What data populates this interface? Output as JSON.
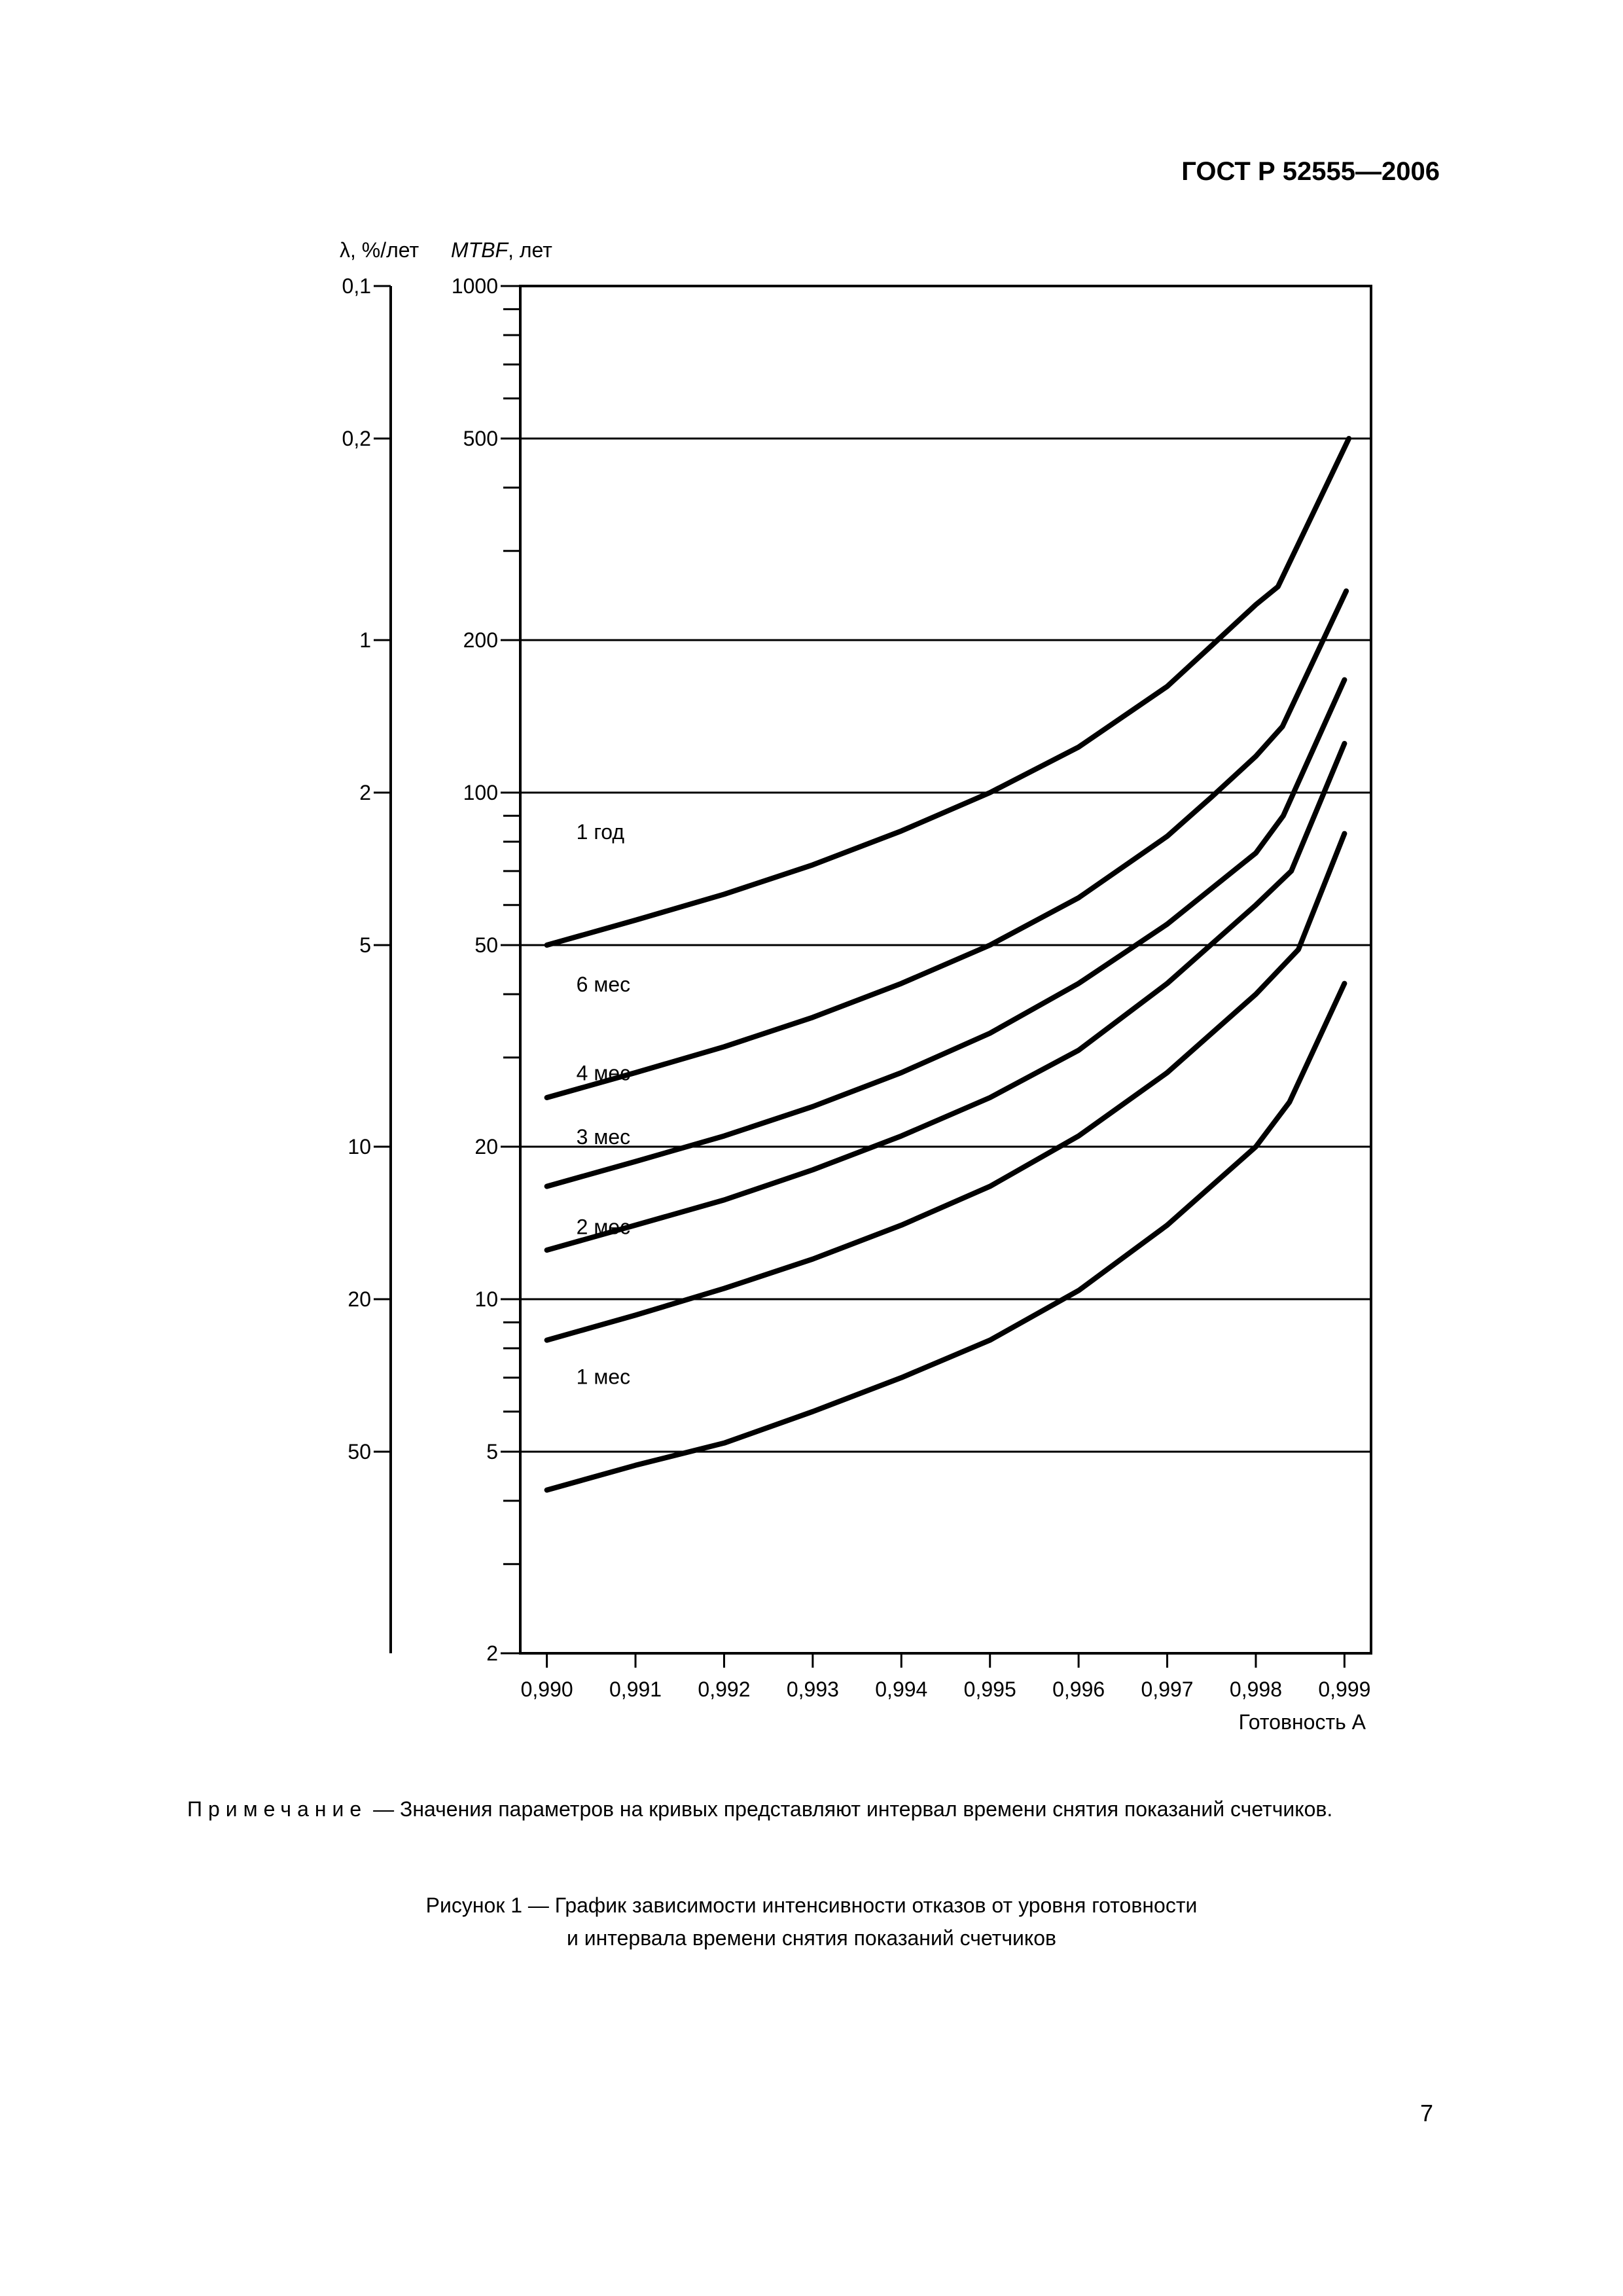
{
  "header": {
    "doc_code": "ГОСТ Р 52555—2006"
  },
  "chart_data": {
    "type": "line",
    "x_axis": {
      "label": "Готовность А",
      "ticks": [
        "0,990",
        "0,991",
        "0,992",
        "0,993",
        "0,994",
        "0,995",
        "0,996",
        "0,997",
        "0,998",
        "0,999"
      ],
      "range": [
        0.9897,
        0.9993
      ]
    },
    "y_axis": {
      "label_italic": "MTBF",
      "label_rest": ", лет",
      "scale": "log",
      "range": [
        2,
        1000
      ],
      "ticks": [
        "1000",
        "500",
        "200",
        "100",
        "50",
        "20",
        "10",
        "5",
        "2"
      ],
      "grid": true
    },
    "y_axis_secondary": {
      "label": "λ, %/лет",
      "scale": "log",
      "ticks": [
        "0,1",
        "0,2",
        "1",
        "2",
        "5",
        "10",
        "20",
        "50"
      ]
    },
    "series": [
      {
        "name": "1 год",
        "x": [
          0.99,
          0.991,
          0.992,
          0.993,
          0.994,
          0.995,
          0.996,
          0.997,
          0.9975,
          0.998,
          0.99825,
          0.99905
        ],
        "y": [
          50,
          56,
          63,
          72,
          84,
          100,
          123,
          162,
          195,
          235,
          255,
          500
        ]
      },
      {
        "name": "6 мес",
        "x": [
          0.99,
          0.991,
          0.992,
          0.993,
          0.994,
          0.995,
          0.996,
          0.997,
          0.9975,
          0.998,
          0.9983,
          0.99902
        ],
        "y": [
          25,
          28,
          31.5,
          36,
          42,
          50,
          62,
          82,
          98,
          118,
          135,
          250
        ]
      },
      {
        "name": "4 мес",
        "x": [
          0.99,
          0.991,
          0.992,
          0.993,
          0.994,
          0.995,
          0.996,
          0.997,
          0.998,
          0.99831,
          0.999
        ],
        "y": [
          16.7,
          18.7,
          21,
          24,
          28,
          33.5,
          42,
          55,
          76,
          90,
          167
        ]
      },
      {
        "name": "3 мес",
        "x": [
          0.99,
          0.991,
          0.992,
          0.993,
          0.994,
          0.995,
          0.996,
          0.997,
          0.998,
          0.9984,
          0.999
        ],
        "y": [
          12.5,
          14,
          15.7,
          18,
          21,
          25,
          31,
          42,
          60,
          70,
          125
        ]
      },
      {
        "name": "2 мес",
        "x": [
          0.99,
          0.991,
          0.992,
          0.993,
          0.994,
          0.995,
          0.996,
          0.997,
          0.998,
          0.99848,
          0.999
        ],
        "y": [
          8.3,
          9.3,
          10.5,
          12,
          14,
          16.7,
          21,
          28,
          40,
          49,
          83
        ]
      },
      {
        "name": "1 мес",
        "x": [
          0.99,
          0.991,
          0.992,
          0.993,
          0.994,
          0.995,
          0.996,
          0.997,
          0.998,
          0.99838,
          0.999
        ],
        "y": [
          4.2,
          4.7,
          5.2,
          6,
          7,
          8.3,
          10.4,
          14,
          20,
          24.5,
          42
        ]
      }
    ]
  },
  "note": {
    "lead": "Примечание",
    "text": " — Значения параметров на кривых представляют интервал времени снятия показаний счетчиков."
  },
  "caption": {
    "line1": "Рисунок 1 — График зависимости интенсивности отказов от уровня готовности",
    "line2": "и интервала времени снятия показаний счетчиков"
  },
  "page_number": "7"
}
